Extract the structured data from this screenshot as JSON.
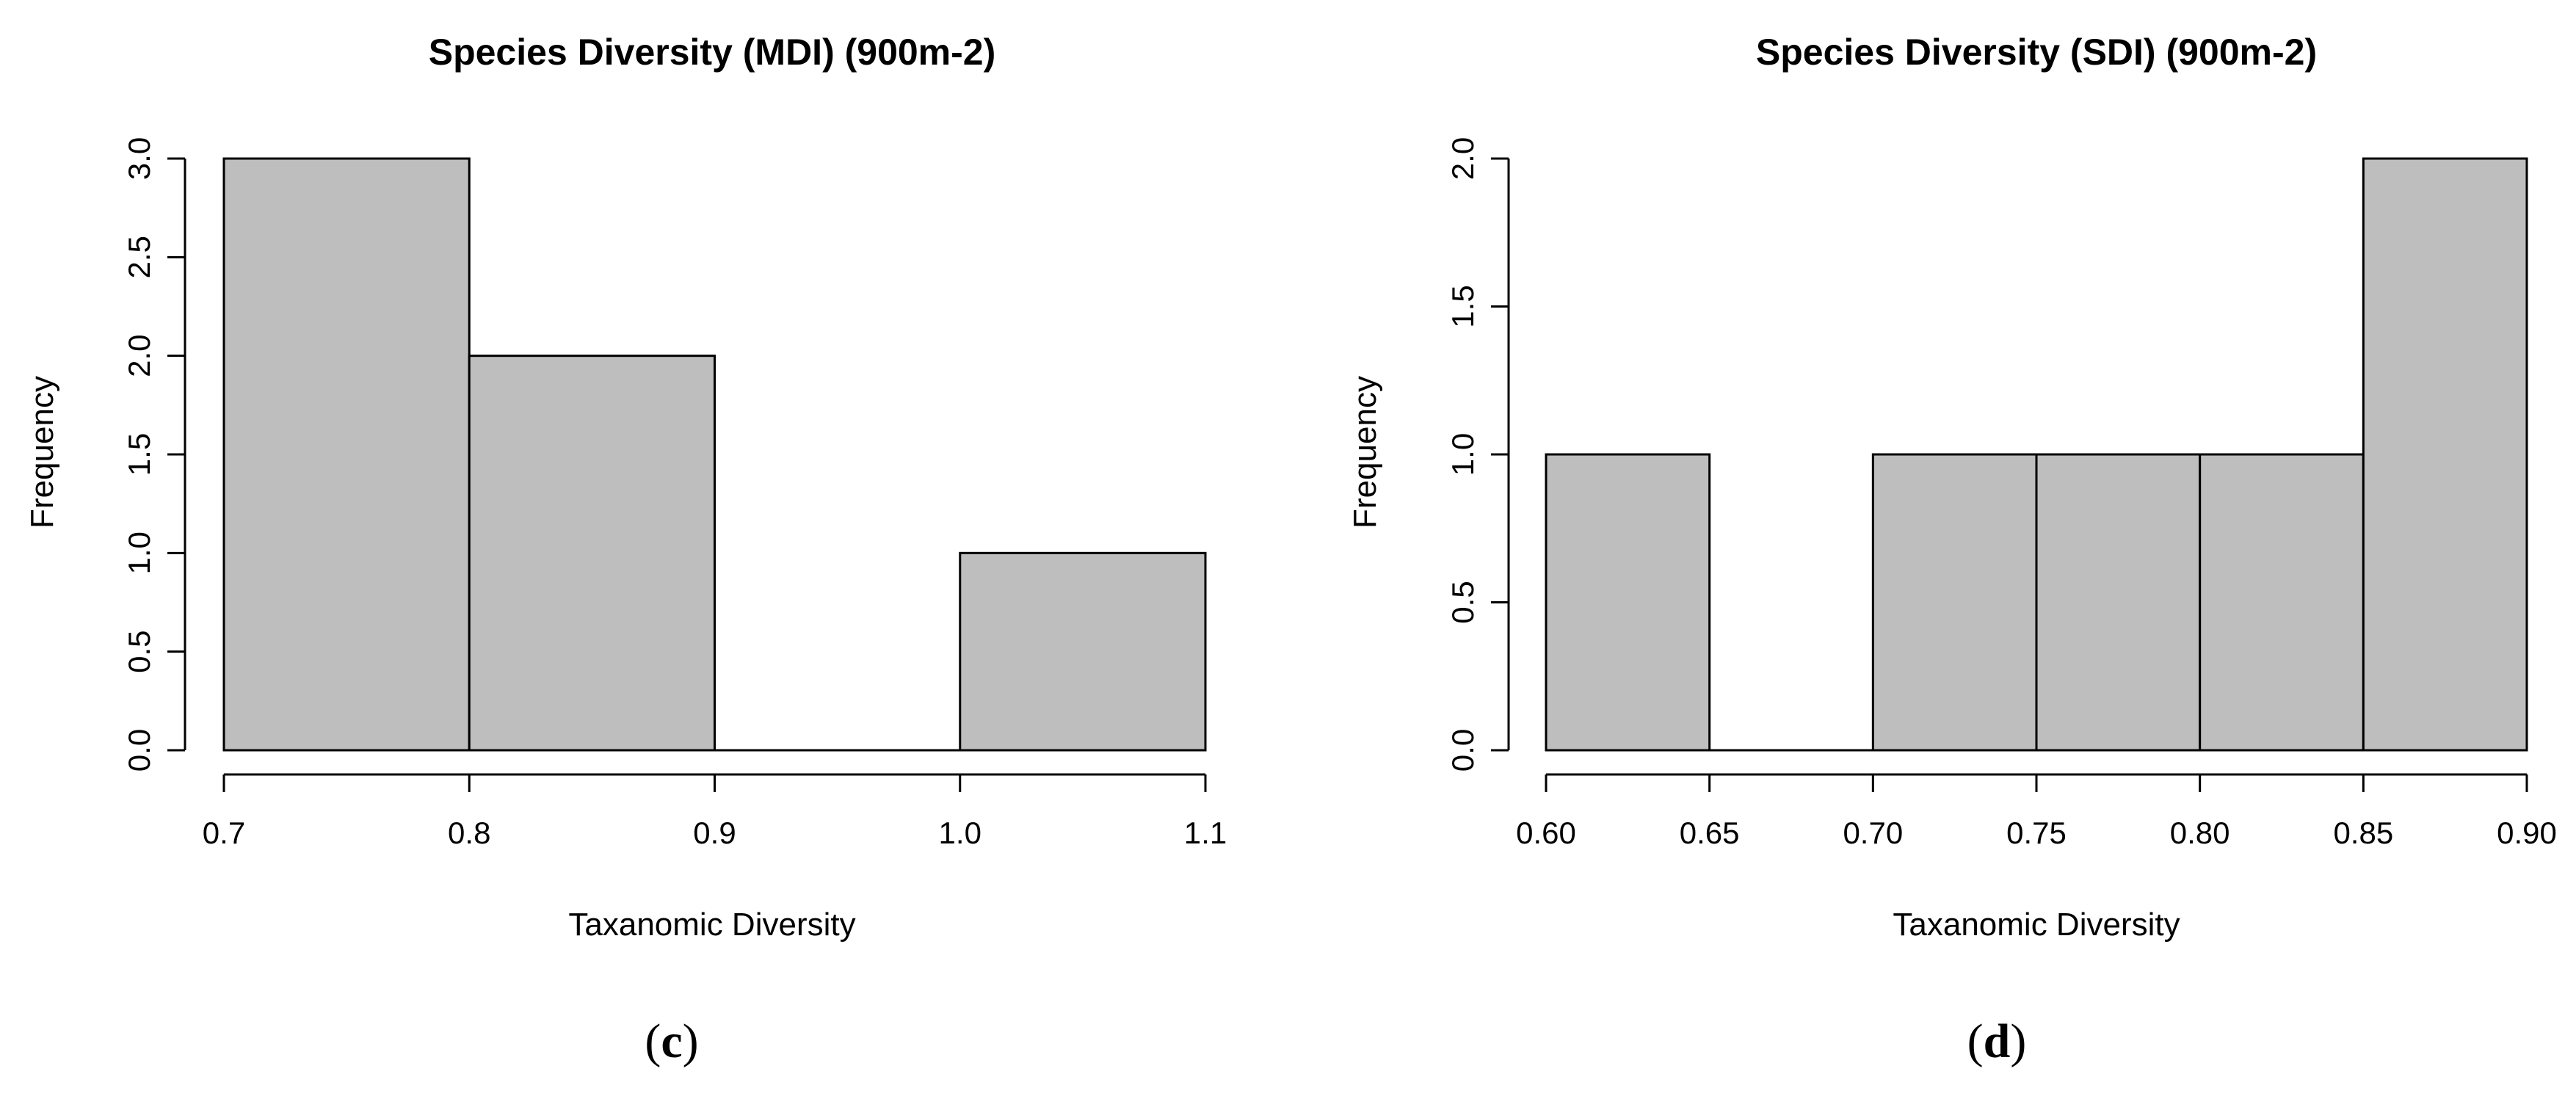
{
  "chart_data": [
    {
      "type": "histogram",
      "title": "Species Diversity (MDI) (900m-2)",
      "xlabel": "Taxanomic Diversity",
      "ylabel": "Frequency",
      "bins": [
        [
          0.7,
          0.8
        ],
        [
          0.8,
          0.9
        ],
        [
          0.9,
          1.0
        ],
        [
          1.0,
          1.1
        ]
      ],
      "values": [
        3,
        2,
        0,
        1
      ],
      "xticks": [
        "0.7",
        "0.8",
        "0.9",
        "1.0",
        "1.1"
      ],
      "xtick_values": [
        0.7,
        0.8,
        0.9,
        1.0,
        1.1
      ],
      "yticks": [
        "0.0",
        "0.5",
        "1.0",
        "1.5",
        "2.0",
        "2.5",
        "3.0"
      ],
      "ytick_values": [
        0,
        0.5,
        1.0,
        1.5,
        2.0,
        2.5,
        3.0
      ],
      "xlim": [
        0.7,
        1.1
      ],
      "ylim": [
        0,
        3
      ],
      "panel_label": "c",
      "bar_color": "#bebebe"
    },
    {
      "type": "histogram",
      "title": "Species Diversity (SDI) (900m-2)",
      "xlabel": "Taxanomic Diversity",
      "ylabel": "Frequency",
      "bins": [
        [
          0.6,
          0.65
        ],
        [
          0.65,
          0.7
        ],
        [
          0.7,
          0.75
        ],
        [
          0.75,
          0.8
        ],
        [
          0.8,
          0.85
        ],
        [
          0.85,
          0.9
        ]
      ],
      "values": [
        1,
        0,
        1,
        1,
        1,
        2
      ],
      "xticks": [
        "0.60",
        "0.65",
        "0.70",
        "0.75",
        "0.80",
        "0.85",
        "0.90"
      ],
      "xtick_values": [
        0.6,
        0.65,
        0.7,
        0.75,
        0.8,
        0.85,
        0.9
      ],
      "yticks": [
        "0.0",
        "0.5",
        "1.0",
        "1.5",
        "2.0"
      ],
      "ytick_values": [
        0,
        0.5,
        1.0,
        1.5,
        2.0
      ],
      "xlim": [
        0.6,
        0.9
      ],
      "ylim": [
        0,
        2
      ],
      "panel_label": "d",
      "bar_color": "#bebebe"
    }
  ]
}
